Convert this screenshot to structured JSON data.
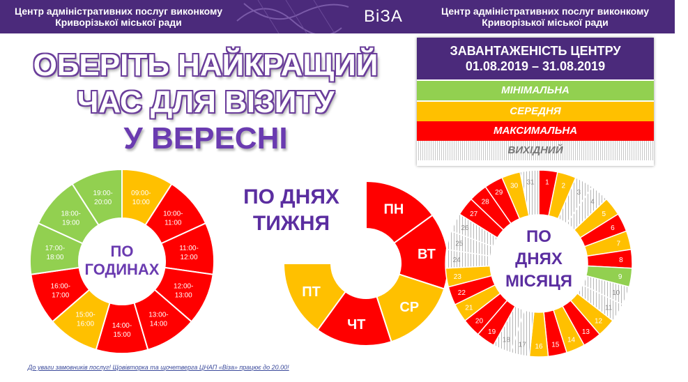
{
  "banner": {
    "left_text": "Центр адміністративних послуг виконкому Криворізької міської ради",
    "logo": "ВіЗА",
    "right_text": "Центр адміністративних послуг виконкому Криворізької міської ради"
  },
  "headline": {
    "line1": "ОБЕРІТЬ НАЙКРАЩИЙ",
    "line2": "ЧАС ДЛЯ ВІЗИТУ",
    "line3": "У ВЕРЕСНІ"
  },
  "legend": {
    "title_line1": "ЗАВАНТАЖЕНІСТЬ ЦЕНТРУ",
    "title_line2": "01.08.2019 – 31.08.2019",
    "levels": [
      {
        "label": "МІНІМАЛЬНА",
        "color": "#92d050"
      },
      {
        "label": "СЕРЕДНЯ",
        "color": "#ffc000"
      },
      {
        "label": "МАКСИМАЛЬНА",
        "color": "#ff0000"
      },
      {
        "label": "ВИХІДНИЙ",
        "color": "#d9d9d9"
      }
    ]
  },
  "colors": {
    "min": "#92d050",
    "mid": "#ffc000",
    "max": "#ff0000",
    "off": "#d0d0d0",
    "brand": "#4b2a7b"
  },
  "hours_chart": {
    "center_label_line1": "ПО",
    "center_label_line2": "ГОДИНАХ",
    "slots": [
      {
        "label": "09:00-\n10:00",
        "level": "mid"
      },
      {
        "label": "10:00-\n11:00",
        "level": "max"
      },
      {
        "label": "11:00-\n12:00",
        "level": "max"
      },
      {
        "label": "12:00-\n13:00",
        "level": "max"
      },
      {
        "label": "13:00-\n14:00",
        "level": "max"
      },
      {
        "label": "14:00-\n15:00",
        "level": "max"
      },
      {
        "label": "15:00-\n16:00",
        "level": "mid"
      },
      {
        "label": "16:00-\n17:00",
        "level": "max"
      },
      {
        "label": "17:00-\n18:00",
        "level": "min"
      },
      {
        "label": "18:00-\n19:00",
        "level": "min"
      },
      {
        "label": "19:00-\n20:00",
        "level": "min"
      }
    ]
  },
  "weekdays_chart": {
    "title_line1": "ПО ДНЯХ",
    "title_line2": "ТИЖНЯ",
    "days": [
      {
        "label": "ПН",
        "level": "max"
      },
      {
        "label": "ВТ",
        "level": "max"
      },
      {
        "label": "СР",
        "level": "mid"
      },
      {
        "label": "ЧТ",
        "level": "max"
      },
      {
        "label": "ПТ",
        "level": "mid"
      }
    ]
  },
  "days_chart": {
    "center_label_line1": "ПО",
    "center_label_line2": "ДНЯХ",
    "center_label_line3": "МІСЯЦЯ",
    "days": [
      {
        "day": "1",
        "level": "max"
      },
      {
        "day": "2",
        "level": "mid"
      },
      {
        "day": "3",
        "level": "off"
      },
      {
        "day": "4",
        "level": "off"
      },
      {
        "day": "5",
        "level": "mid"
      },
      {
        "day": "6",
        "level": "max"
      },
      {
        "day": "7",
        "level": "mid"
      },
      {
        "day": "8",
        "level": "max"
      },
      {
        "day": "9",
        "level": "min"
      },
      {
        "day": "10",
        "level": "off"
      },
      {
        "day": "11",
        "level": "off"
      },
      {
        "day": "12",
        "level": "mid"
      },
      {
        "day": "13",
        "level": "max"
      },
      {
        "day": "14",
        "level": "mid"
      },
      {
        "day": "15",
        "level": "max"
      },
      {
        "day": "16",
        "level": "mid"
      },
      {
        "day": "17",
        "level": "off"
      },
      {
        "day": "18",
        "level": "off"
      },
      {
        "day": "19",
        "level": "max"
      },
      {
        "day": "20",
        "level": "max"
      },
      {
        "day": "21",
        "level": "mid"
      },
      {
        "day": "22",
        "level": "max"
      },
      {
        "day": "23",
        "level": "mid"
      },
      {
        "day": "24",
        "level": "off"
      },
      {
        "day": "25",
        "level": "off"
      },
      {
        "day": "26",
        "level": "off"
      },
      {
        "day": "27",
        "level": "max"
      },
      {
        "day": "28",
        "level": "max"
      },
      {
        "day": "29",
        "level": "max"
      },
      {
        "day": "30",
        "level": "mid"
      },
      {
        "day": "31",
        "level": "off"
      }
    ]
  },
  "footnote": "До уваги замовників послуг! Щовівторка та щочетверга ЦНАП «Віза» працює до 20.00!"
}
